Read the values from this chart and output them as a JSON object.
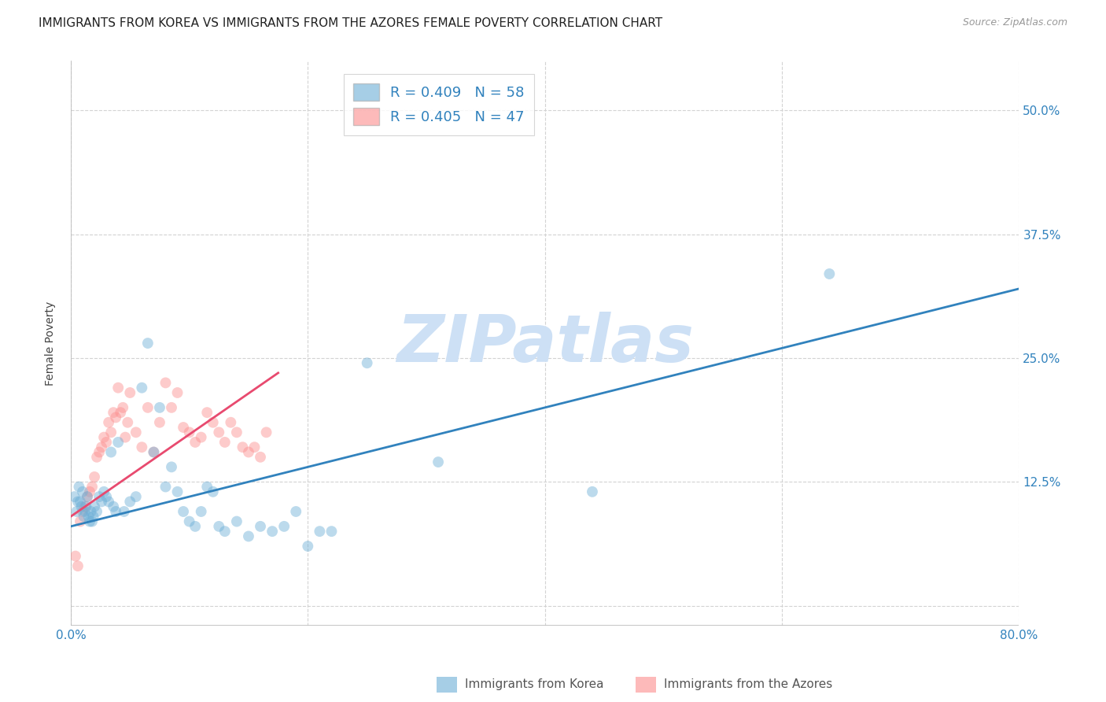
{
  "title": "IMMIGRANTS FROM KOREA VS IMMIGRANTS FROM THE AZORES FEMALE POVERTY CORRELATION CHART",
  "source": "Source: ZipAtlas.com",
  "ylabel": "Female Poverty",
  "xlim": [
    0,
    0.8
  ],
  "ylim": [
    -0.02,
    0.55
  ],
  "yticks": [
    0.0,
    0.125,
    0.25,
    0.375,
    0.5
  ],
  "ytick_labels": [
    "",
    "12.5%",
    "25.0%",
    "37.5%",
    "50.0%"
  ],
  "xticks": [
    0.0,
    0.2,
    0.4,
    0.6,
    0.8
  ],
  "xtick_labels": [
    "0.0%",
    "",
    "",
    "",
    "80.0%"
  ],
  "watermark": "ZIPatlas",
  "legend_r1": "R = 0.409",
  "legend_n1": "N = 58",
  "legend_r2": "R = 0.405",
  "legend_n2": "N = 47",
  "korea_scatter_x": [
    0.003,
    0.005,
    0.006,
    0.007,
    0.008,
    0.009,
    0.01,
    0.011,
    0.012,
    0.013,
    0.014,
    0.015,
    0.016,
    0.017,
    0.018,
    0.019,
    0.02,
    0.022,
    0.024,
    0.026,
    0.028,
    0.03,
    0.032,
    0.034,
    0.036,
    0.038,
    0.04,
    0.045,
    0.05,
    0.055,
    0.06,
    0.065,
    0.07,
    0.075,
    0.08,
    0.085,
    0.09,
    0.095,
    0.1,
    0.105,
    0.11,
    0.115,
    0.12,
    0.125,
    0.13,
    0.14,
    0.15,
    0.16,
    0.17,
    0.18,
    0.19,
    0.2,
    0.21,
    0.22,
    0.25,
    0.31,
    0.44,
    0.64
  ],
  "korea_scatter_y": [
    0.11,
    0.095,
    0.105,
    0.12,
    0.105,
    0.1,
    0.115,
    0.09,
    0.095,
    0.1,
    0.11,
    0.09,
    0.085,
    0.095,
    0.085,
    0.09,
    0.1,
    0.095,
    0.11,
    0.105,
    0.115,
    0.11,
    0.105,
    0.155,
    0.1,
    0.095,
    0.165,
    0.095,
    0.105,
    0.11,
    0.22,
    0.265,
    0.155,
    0.2,
    0.12,
    0.14,
    0.115,
    0.095,
    0.085,
    0.08,
    0.095,
    0.12,
    0.115,
    0.08,
    0.075,
    0.085,
    0.07,
    0.08,
    0.075,
    0.08,
    0.095,
    0.06,
    0.075,
    0.075,
    0.245,
    0.145,
    0.115,
    0.335
  ],
  "korea_line_x": [
    0.0,
    0.8
  ],
  "korea_line_y": [
    0.08,
    0.32
  ],
  "azores_scatter_x": [
    0.004,
    0.006,
    0.008,
    0.01,
    0.012,
    0.014,
    0.016,
    0.018,
    0.02,
    0.022,
    0.024,
    0.026,
    0.028,
    0.03,
    0.032,
    0.034,
    0.036,
    0.038,
    0.04,
    0.042,
    0.044,
    0.046,
    0.048,
    0.05,
    0.055,
    0.06,
    0.065,
    0.07,
    0.075,
    0.08,
    0.085,
    0.09,
    0.095,
    0.1,
    0.105,
    0.11,
    0.115,
    0.12,
    0.125,
    0.13,
    0.135,
    0.14,
    0.145,
    0.15,
    0.155,
    0.16,
    0.165
  ],
  "azores_scatter_y": [
    0.05,
    0.04,
    0.085,
    0.095,
    0.1,
    0.11,
    0.115,
    0.12,
    0.13,
    0.15,
    0.155,
    0.16,
    0.17,
    0.165,
    0.185,
    0.175,
    0.195,
    0.19,
    0.22,
    0.195,
    0.2,
    0.17,
    0.185,
    0.215,
    0.175,
    0.16,
    0.2,
    0.155,
    0.185,
    0.225,
    0.2,
    0.215,
    0.18,
    0.175,
    0.165,
    0.17,
    0.195,
    0.185,
    0.175,
    0.165,
    0.185,
    0.175,
    0.16,
    0.155,
    0.16,
    0.15,
    0.175
  ],
  "azores_line_x": [
    0.0,
    0.175
  ],
  "azores_line_y": [
    0.09,
    0.235
  ],
  "korea_color": "#6baed6",
  "azores_color": "#fc8d8d",
  "korea_line_color": "#3182bd",
  "azores_line_color": "#e84a6f",
  "grid_color": "#d3d3d3",
  "background_color": "#ffffff",
  "title_fontsize": 11,
  "axis_label_fontsize": 10,
  "tick_fontsize": 11,
  "watermark_color": "#cde0f5",
  "watermark_fontsize": 60,
  "bottom_legend_label1": "Immigrants from Korea",
  "bottom_legend_label2": "Immigrants from the Azores"
}
